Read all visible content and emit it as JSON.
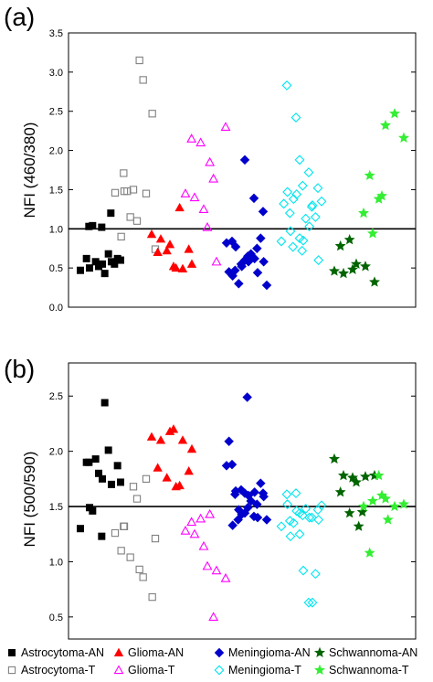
{
  "legend": [
    {
      "label": "Astrocytoma-AN",
      "color": "#000000",
      "marker": "square",
      "filled": true
    },
    {
      "label": "Glioma-AN",
      "color": "#ff0000",
      "marker": "triangle",
      "filled": true
    },
    {
      "label": "Meningioma-AN",
      "color": "#0000cc",
      "marker": "diamond",
      "filled": true
    },
    {
      "label": "Schwannoma-AN",
      "color": "#006400",
      "marker": "star",
      "filled": true
    },
    {
      "label": "Astrocytoma-T",
      "color": "#808080",
      "marker": "square",
      "filled": false
    },
    {
      "label": "Glioma-T",
      "color": "#ff00ff",
      "marker": "triangle",
      "filled": false
    },
    {
      "label": "Meningioma-T",
      "color": "#00e5ee",
      "marker": "diamond",
      "filled": false
    },
    {
      "label": "Schwannoma-T",
      "color": "#33ee33",
      "marker": "star",
      "filled": true
    }
  ],
  "chart_data": [
    {
      "type": "scatter",
      "panel_label": "(a)",
      "ylabel": "NFI (460/380)",
      "ylim": [
        0,
        3.5
      ],
      "yticks": [
        "0.0",
        "0.5",
        "1.0",
        "1.5",
        "2.0",
        "2.5",
        "3.0",
        "3.5"
      ],
      "reference_line": 1.0,
      "series": [
        {
          "name": "Astrocytoma-AN",
          "values": [
            0.47,
            0.5,
            0.52,
            0.55,
            0.58,
            0.6,
            0.62,
            0.58,
            0.43,
            0.68,
            0.62,
            1.03,
            1.04,
            1.02,
            1.2,
            0.55
          ]
        },
        {
          "name": "Astrocytoma-T",
          "values": [
            1.46,
            1.48,
            1.5,
            1.1,
            1.45,
            0.74,
            0.9,
            1.15,
            3.15,
            2.9,
            2.47,
            1.71,
            1.48
          ]
        },
        {
          "name": "Glioma-AN",
          "values": [
            0.93,
            0.87,
            0.8,
            0.52,
            0.49,
            0.55,
            0.7,
            0.72,
            0.5,
            1.27,
            0.74
          ]
        },
        {
          "name": "Glioma-T",
          "values": [
            1.45,
            1.4,
            1.25,
            1.02,
            0.58,
            2.3,
            2.15,
            2.1,
            1.85,
            1.64
          ]
        },
        {
          "name": "Meningioma-AN",
          "values": [
            0.82,
            0.77,
            0.6,
            0.58,
            0.44,
            0.28,
            0.4,
            0.52,
            0.68,
            0.62,
            0.58,
            0.47,
            0.3,
            0.65,
            0.75,
            0.88,
            0.84,
            0.55,
            1.88,
            1.39,
            1.22,
            0.45
          ]
        },
        {
          "name": "Meningioma-T",
          "values": [
            0.84,
            0.97,
            0.88,
            0.85,
            1.3,
            1.35,
            1.47,
            1.44,
            1.13,
            1.03,
            0.6,
            1.2,
            1.38,
            1.55,
            1.28,
            1.15,
            2.83,
            2.42,
            1.88,
            1.72,
            1.52,
            1.32,
            0.77,
            0.72
          ]
        },
        {
          "name": "Schwannoma-AN",
          "values": [
            0.46,
            0.43,
            0.48,
            0.55,
            0.52,
            0.32,
            0.78,
            0.86
          ]
        },
        {
          "name": "Schwannoma-T",
          "values": [
            1.2,
            0.94,
            1.42,
            2.32,
            2.47,
            2.16,
            1.68,
            1.38
          ]
        }
      ]
    },
    {
      "type": "scatter",
      "panel_label": "(b)",
      "ylabel": "NFI (500/590)",
      "ylim": [
        0.3,
        2.8
      ],
      "yticks": [
        "0.5",
        "1.0",
        "1.5",
        "2.0",
        "2.5"
      ],
      "reference_line": 1.5,
      "series": [
        {
          "name": "Astrocytoma-AN",
          "values": [
            1.3,
            1.49,
            1.8,
            1.75,
            1.7,
            1.72,
            1.9,
            1.93,
            2.44,
            2.01,
            1.87,
            1.9,
            1.46,
            1.23
          ]
        },
        {
          "name": "Astrocytoma-T",
          "values": [
            1.26,
            1.32,
            1.68,
            1.57,
            1.75,
            1.21,
            1.1,
            1.04,
            0.93,
            0.86,
            0.68,
            1.32
          ]
        },
        {
          "name": "Glioma-AN",
          "values": [
            2.13,
            2.1,
            2.18,
            2.2,
            2.1,
            2.02,
            1.85,
            1.76,
            1.68,
            1.69,
            1.82
          ]
        },
        {
          "name": "Glioma-T",
          "values": [
            1.28,
            1.25,
            1.14,
            0.96,
            0.92,
            0.85,
            1.36,
            1.39,
            1.43,
            0.5
          ]
        },
        {
          "name": "Meningioma-AN",
          "values": [
            1.87,
            1.64,
            1.62,
            1.6,
            1.4,
            1.38,
            1.33,
            1.43,
            1.55,
            1.63,
            1.59,
            1.61,
            1.47,
            1.49,
            1.52,
            1.71,
            1.88,
            1.65,
            1.44,
            1.41,
            1.62,
            2.09,
            1.38,
            2.49
          ]
        },
        {
          "name": "Meningioma-T",
          "values": [
            1.32,
            1.23,
            1.25,
            0.92,
            0.63,
            1.51,
            1.52,
            1.46,
            1.48,
            1.4,
            1.38,
            1.37,
            1.35,
            1.42,
            1.4,
            0.89,
            1.61,
            1.62,
            1.44,
            0.63,
            1.47
          ]
        },
        {
          "name": "Schwannoma-AN",
          "values": [
            1.93,
            1.78,
            1.76,
            1.72,
            1.77,
            1.78,
            1.63,
            1.44,
            1.32,
            1.45
          ]
        },
        {
          "name": "Schwannoma-T",
          "values": [
            1.5,
            1.55,
            1.6,
            1.57,
            1.5,
            1.52,
            1.08,
            1.78,
            1.38
          ]
        }
      ]
    }
  ]
}
